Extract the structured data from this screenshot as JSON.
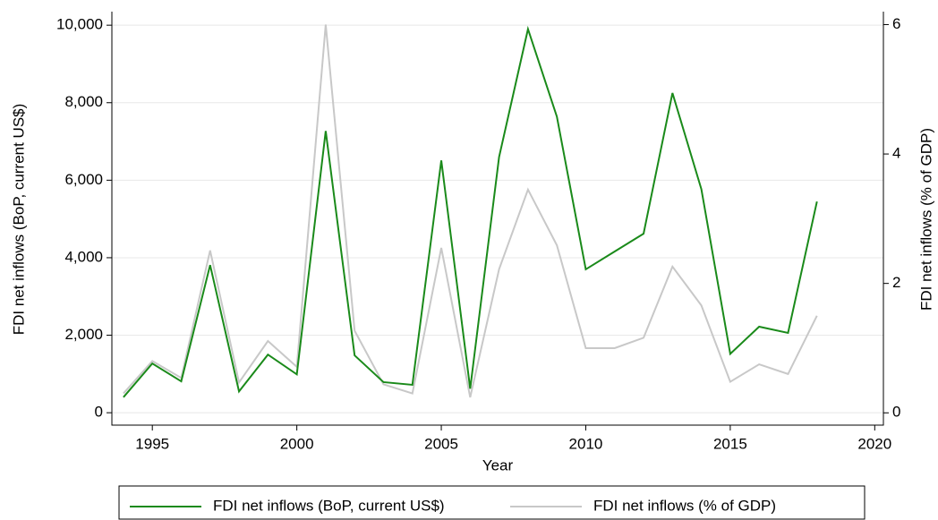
{
  "chart_data": {
    "type": "line",
    "x": [
      1994,
      1995,
      1996,
      1997,
      1998,
      1999,
      2000,
      2001,
      2002,
      2003,
      2004,
      2005,
      2006,
      2007,
      2008,
      2009,
      2010,
      2011,
      2012,
      2013,
      2014,
      2015,
      2016,
      2017,
      2018
    ],
    "series": [
      {
        "name": "FDI net inflows (BoP, current US$)",
        "color": "#1a8a1a",
        "values": [
          400,
          1270,
          810,
          3810,
          550,
          1500,
          990,
          7270,
          1480,
          790,
          720,
          6510,
          620,
          6600,
          9900,
          7640,
          3700,
          4160,
          4620,
          8250,
          5770,
          1520,
          2220,
          2060,
          5450
        ]
      },
      {
        "name": "FDI net inflows (% of GDP)",
        "color": "#c8c8c8",
        "axis": "y2",
        "values": [
          0.3,
          0.8,
          0.54,
          2.51,
          0.47,
          1.11,
          0.71,
          6.0,
          1.27,
          0.44,
          0.3,
          2.55,
          0.24,
          2.22,
          3.45,
          2.59,
          1.0,
          1.0,
          1.16,
          2.26,
          1.66,
          0.48,
          0.75,
          0.6,
          1.5
        ]
      }
    ],
    "x_label": "Year",
    "y_label": "FDI net inflows (BoP, current US$)",
    "y2_label": "FDI net inflows (% of GDP)",
    "xlim": [
      1993.6,
      2020.3
    ],
    "xticks": [
      1995,
      2000,
      2005,
      2010,
      2015,
      2020
    ],
    "ylim": [
      -320,
      10350
    ],
    "yticks": [
      0,
      {
        "value": 2000,
        "label": "2,000"
      },
      {
        "value": 4000,
        "label": "4,000"
      },
      {
        "value": 6000,
        "label": "6,000"
      },
      {
        "value": 8000,
        "label": "8,000"
      },
      {
        "value": 10000,
        "label": "10,000"
      }
    ],
    "y2lim": [
      -0.19,
      6.2
    ],
    "y2ticks": [
      0,
      2,
      4,
      6
    ],
    "grid": true,
    "legend": "bottom"
  }
}
